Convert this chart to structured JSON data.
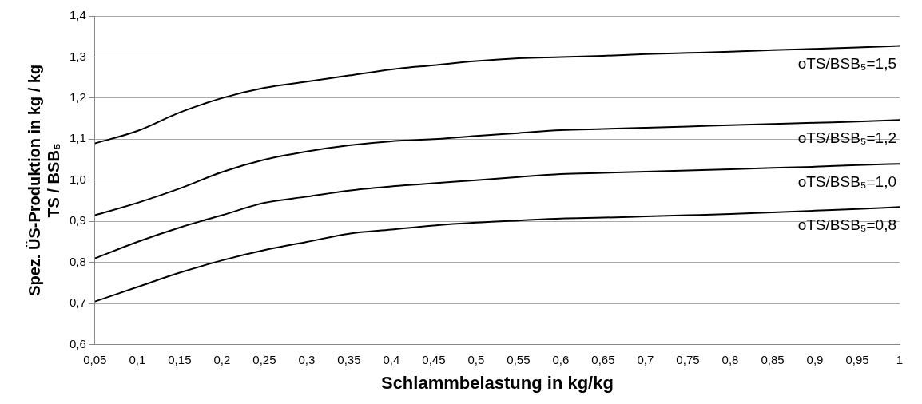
{
  "chart_data": {
    "type": "line",
    "xlabel": "Schlammbelastung in kg/kg",
    "ylabel": "Spez. ÜS-Produktion in kg / kg\nTS / BSB₅",
    "x": [
      0.05,
      0.1,
      0.15,
      0.2,
      0.25,
      0.3,
      0.35,
      0.4,
      0.45,
      0.5,
      0.55,
      0.6,
      0.65,
      0.7,
      0.75,
      0.8,
      0.85,
      0.9,
      0.95,
      1
    ],
    "series": [
      {
        "name": "oTS/BSB₅=1,5",
        "color": "#000000",
        "values": [
          1.09,
          1.12,
          1.165,
          1.2,
          1.225,
          1.24,
          1.255,
          1.27,
          1.28,
          1.29,
          1.297,
          1.3,
          1.303,
          1.307,
          1.31,
          1.313,
          1.317,
          1.32,
          1.323,
          1.327
        ]
      },
      {
        "name": "oTS/BSB₅=1,2",
        "color": "#000000",
        "values": [
          0.915,
          0.945,
          0.98,
          1.02,
          1.05,
          1.07,
          1.085,
          1.095,
          1.1,
          1.108,
          1.115,
          1.122,
          1.125,
          1.128,
          1.131,
          1.134,
          1.137,
          1.14,
          1.143,
          1.147
        ]
      },
      {
        "name": "oTS/BSB₅=1,0",
        "color": "#000000",
        "values": [
          0.81,
          0.85,
          0.885,
          0.915,
          0.945,
          0.96,
          0.975,
          0.985,
          0.993,
          1.0,
          1.008,
          1.015,
          1.018,
          1.021,
          1.024,
          1.027,
          1.03,
          1.033,
          1.037,
          1.04
        ]
      },
      {
        "name": "oTS/BSB₅=0,8",
        "color": "#000000",
        "values": [
          0.705,
          0.74,
          0.775,
          0.805,
          0.83,
          0.85,
          0.87,
          0.88,
          0.89,
          0.897,
          0.902,
          0.907,
          0.909,
          0.912,
          0.915,
          0.918,
          0.922,
          0.926,
          0.93,
          0.935
        ]
      }
    ],
    "xlim": [
      0.05,
      1
    ],
    "xticks": [
      {
        "value": 0.05,
        "label": "0,05"
      },
      {
        "value": 0.1,
        "label": "0,1"
      },
      {
        "value": 0.15,
        "label": "0,15"
      },
      {
        "value": 0.2,
        "label": "0,2"
      },
      {
        "value": 0.25,
        "label": "0,25"
      },
      {
        "value": 0.3,
        "label": "0,3"
      },
      {
        "value": 0.35,
        "label": "0,35"
      },
      {
        "value": 0.4,
        "label": "0,4"
      },
      {
        "value": 0.45,
        "label": "0,45"
      },
      {
        "value": 0.5,
        "label": "0,5"
      },
      {
        "value": 0.55,
        "label": "0,55"
      },
      {
        "value": 0.6,
        "label": "0,6"
      },
      {
        "value": 0.65,
        "label": "0,65"
      },
      {
        "value": 0.7,
        "label": "0,7"
      },
      {
        "value": 0.75,
        "label": "0,75"
      },
      {
        "value": 0.8,
        "label": "0,8"
      },
      {
        "value": 0.85,
        "label": "0,85"
      },
      {
        "value": 0.9,
        "label": "0,9"
      },
      {
        "value": 0.95,
        "label": "0,95"
      },
      {
        "value": 1,
        "label": "1"
      }
    ],
    "ylim": [
      0.6,
      1.4
    ],
    "yticks": [
      {
        "value": 0.6,
        "label": "0,6"
      },
      {
        "value": 0.7,
        "label": "0,7"
      },
      {
        "value": 0.8,
        "label": "0,8"
      },
      {
        "value": 0.9,
        "label": "0,9"
      },
      {
        "value": 1.0,
        "label": "1,0"
      },
      {
        "value": 1.1,
        "label": "1,1"
      },
      {
        "value": 1.2,
        "label": "1,2"
      },
      {
        "value": 1.3,
        "label": "1,3"
      },
      {
        "value": 1.4,
        "label": "1,4"
      }
    ],
    "grid": "y",
    "legend": false,
    "marker": "none",
    "line_style": "solid"
  }
}
